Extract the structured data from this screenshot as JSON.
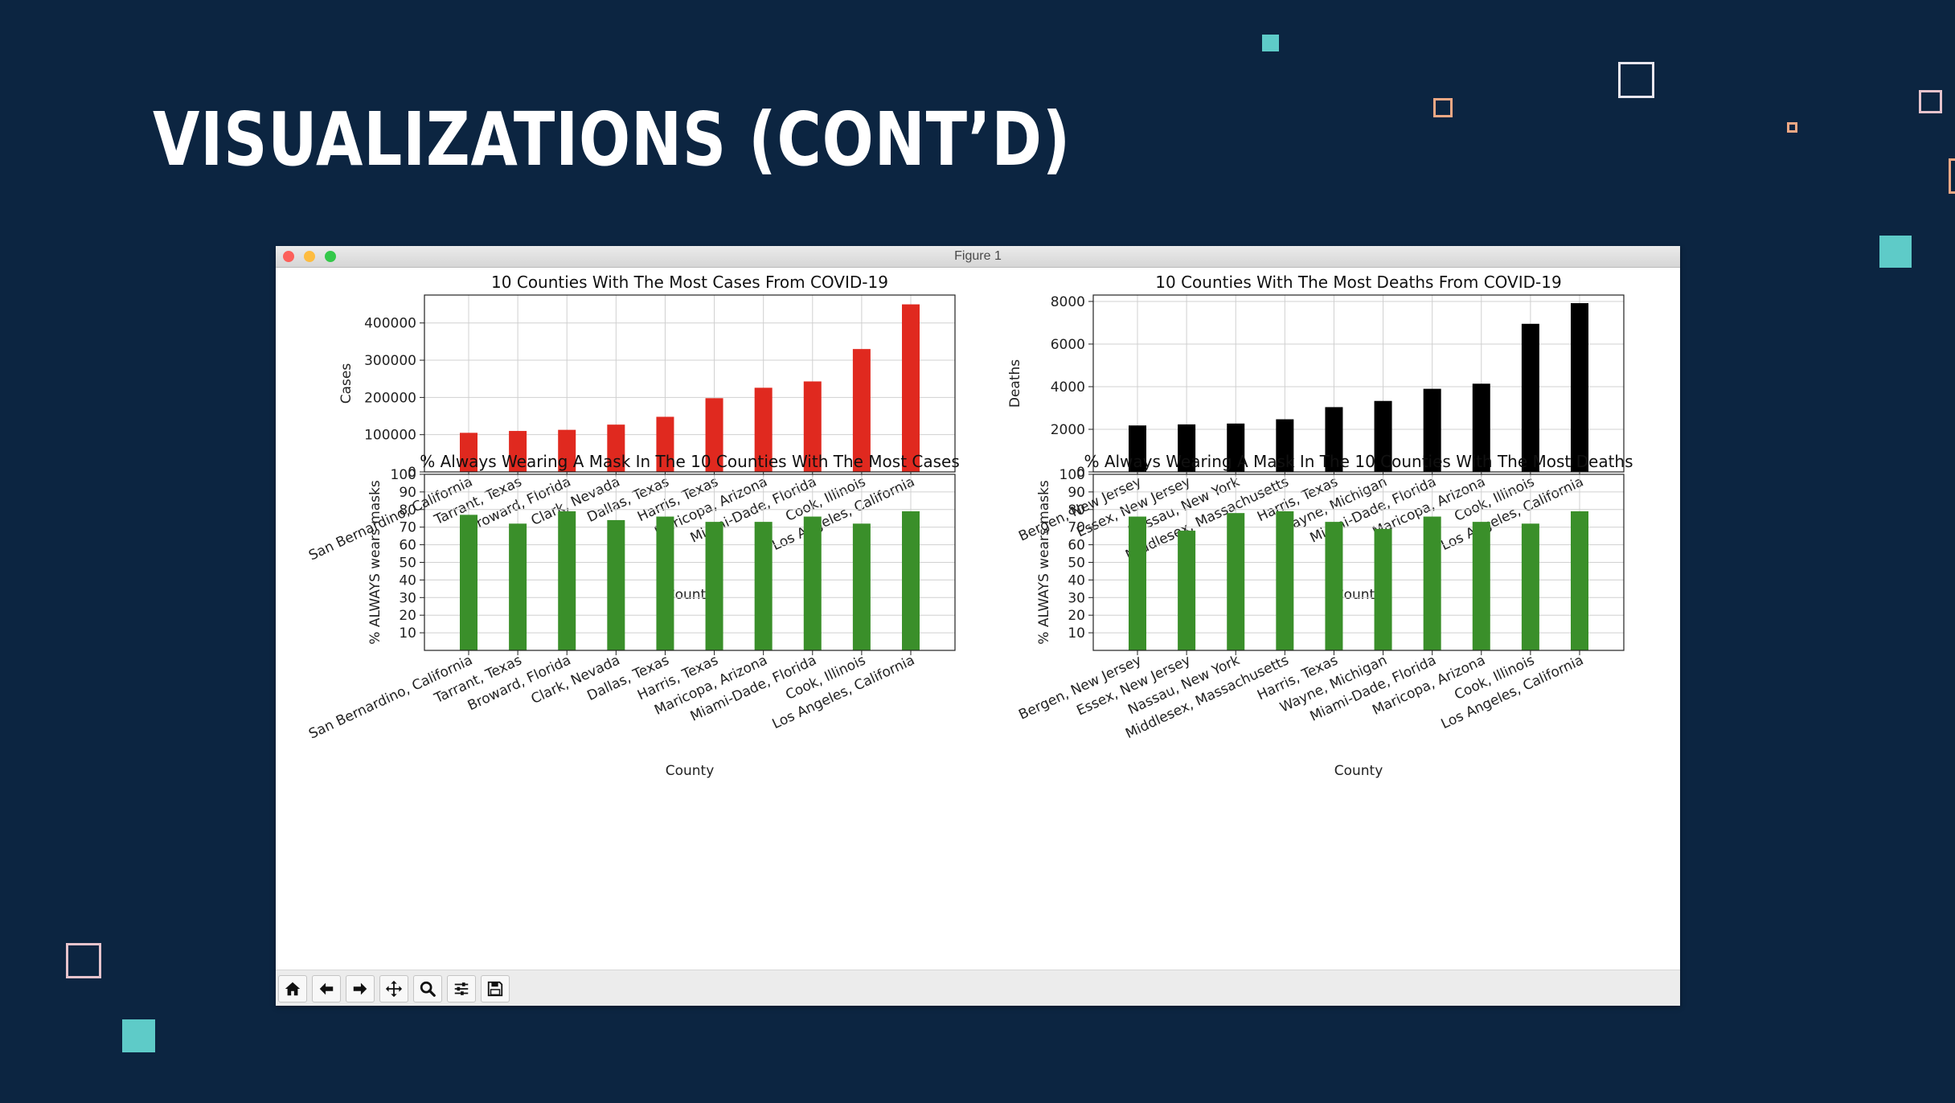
{
  "slide": {
    "title": "VISUALIZATIONS (CONT’D)"
  },
  "window": {
    "title": "Figure 1"
  },
  "toolbar": {
    "buttons": [
      {
        "name": "home-button",
        "icon": "home-icon"
      },
      {
        "name": "back-button",
        "icon": "arrow-left-icon"
      },
      {
        "name": "forward-button",
        "icon": "arrow-right-icon"
      },
      {
        "name": "pan-button",
        "icon": "move-icon"
      },
      {
        "name": "zoom-button",
        "icon": "magnifier-icon"
      },
      {
        "name": "configure-subplots-button",
        "icon": "sliders-icon"
      },
      {
        "name": "save-button",
        "icon": "floppy-disk-icon"
      }
    ]
  },
  "colors": {
    "cases": "#e0291f",
    "deaths": "#000000",
    "mask": "#3a8f2a",
    "background": "#0c2541",
    "accent": "#5ecbc8"
  },
  "chart_data": [
    {
      "type": "bar",
      "title": "10 Counties With The Most Cases From COVID-19",
      "xlabel": "County",
      "ylabel": "Cases",
      "categories": [
        "San Bernardino, California",
        "Tarrant, Texas",
        "Broward, Florida",
        "Clark, Nevada",
        "Dallas, Texas",
        "Harris, Texas",
        "Maricopa, Arizona",
        "Miami-Dade, Florida",
        "Cook, Illinois",
        "Los Angeles, California"
      ],
      "values": [
        105000,
        110000,
        113000,
        127000,
        148000,
        198000,
        226000,
        243000,
        330000,
        450000
      ],
      "ylim": [
        0,
        475000
      ],
      "yticks": [
        0,
        100000,
        200000,
        300000,
        400000
      ],
      "color": "#e0291f",
      "grid": true
    },
    {
      "type": "bar",
      "title": "10 Counties With The Most Deaths From COVID-19",
      "xlabel": "County",
      "ylabel": "Deaths",
      "categories": [
        "Bergen, New Jersey",
        "Essex, New Jersey",
        "Nassau, New York",
        "Middlesex, Massachusetts",
        "Harris, Texas",
        "Wayne, Michigan",
        "Miami-Dade, Florida",
        "Maricopa, Arizona",
        "Cook, Illinois",
        "Los Angeles, California"
      ],
      "values": [
        2180,
        2230,
        2270,
        2470,
        3040,
        3330,
        3900,
        4140,
        6950,
        7920
      ],
      "ylim": [
        0,
        8300
      ],
      "yticks": [
        0,
        2000,
        4000,
        6000,
        8000
      ],
      "color": "#000000",
      "grid": true
    },
    {
      "type": "bar",
      "title": "% Always Wearing A Mask In The 10 Counties With The Most Cases",
      "xlabel": "County",
      "ylabel": "% ALWAYS wears masks",
      "categories": [
        "San Bernardino, California",
        "Tarrant, Texas",
        "Broward, Florida",
        "Clark, Nevada",
        "Dallas, Texas",
        "Harris, Texas",
        "Maricopa, Arizona",
        "Miami-Dade, Florida",
        "Cook, Illinois",
        "Los Angeles, California"
      ],
      "values": [
        77,
        72,
        79,
        74,
        76,
        73,
        73,
        76,
        72,
        79
      ],
      "ylim": [
        0,
        100
      ],
      "yticks": [
        10,
        20,
        30,
        40,
        50,
        60,
        70,
        80,
        90,
        100
      ],
      "color": "#3a8f2a",
      "grid": true
    },
    {
      "type": "bar",
      "title": "% Always Wearing A Mask In The 10 Counties With The Most Deaths",
      "xlabel": "County",
      "ylabel": "% ALWAYS wears masks",
      "categories": [
        "Bergen, New Jersey",
        "Essex, New Jersey",
        "Nassau, New York",
        "Middlesex, Massachusetts",
        "Harris, Texas",
        "Wayne, Michigan",
        "Miami-Dade, Florida",
        "Maricopa, Arizona",
        "Cook, Illinois",
        "Los Angeles, California"
      ],
      "values": [
        76,
        68,
        78,
        79,
        73,
        69,
        76,
        73,
        72,
        79
      ],
      "ylim": [
        0,
        100
      ],
      "yticks": [
        10,
        20,
        30,
        40,
        50,
        60,
        70,
        80,
        90,
        100
      ],
      "color": "#3a8f2a",
      "grid": true
    }
  ]
}
